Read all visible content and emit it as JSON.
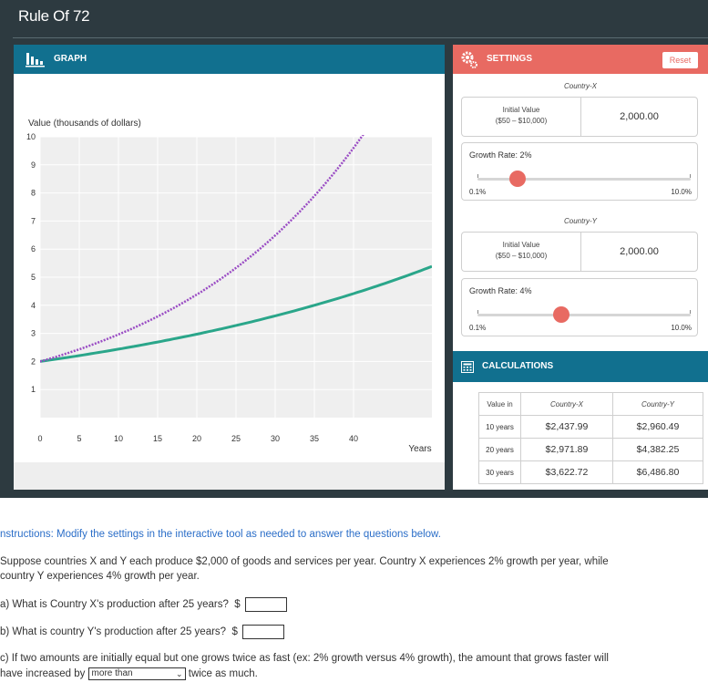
{
  "app": {
    "title": "Rule Of 72"
  },
  "graph_panel": {
    "header": "GRAPH"
  },
  "chart_data": {
    "type": "line",
    "ylabel": "Value (thousands of dollars)",
    "xlabel": "Years",
    "xlim": [
      0,
      50
    ],
    "ylim": [
      0,
      10
    ],
    "x_ticks": [
      0,
      5,
      10,
      15,
      20,
      25,
      30,
      35,
      40
    ],
    "y_ticks": [
      1,
      2,
      3,
      4,
      5,
      6,
      7,
      8,
      9,
      10
    ],
    "grid": true,
    "legend_position": "bottom",
    "series": [
      {
        "name": "Country-X",
        "color": "#2aa68a",
        "dash": "solid",
        "start": 2.0,
        "rate": 0.02,
        "x": [
          0,
          10,
          20,
          30,
          40,
          45
        ],
        "y": [
          2.0,
          2.44,
          2.97,
          3.62,
          4.42,
          4.88
        ]
      },
      {
        "name": "Country-Y",
        "color": "#9a4cc4",
        "dash": "dotted",
        "start": 2.0,
        "rate": 0.04,
        "x": [
          0,
          10,
          20,
          30,
          40,
          43
        ],
        "y": [
          2.0,
          2.96,
          4.38,
          6.49,
          9.6,
          10.8
        ]
      }
    ]
  },
  "settings": {
    "header": "SETTINGS",
    "reset_label": "Reset",
    "x": {
      "country": "Country-X",
      "initial_label": "Initial Value",
      "range_label": "($50 – $10,000)",
      "initial_value": "2,000.00",
      "growth_label": "Growth Rate: 2%",
      "rate_fraction": 0.19,
      "min_label": "0.1%",
      "max_label": "10.0%"
    },
    "y": {
      "country": "Country-Y",
      "initial_label": "Initial Value",
      "range_label": "($50 – $10,000)",
      "initial_value": "2,000.00",
      "growth_label": "Growth Rate: 4%",
      "rate_fraction": 0.394,
      "min_label": "0.1%",
      "max_label": "10.0%"
    }
  },
  "calculations": {
    "header": "CALCULATIONS",
    "columns": [
      "Value in",
      "Country-X",
      "Country-Y"
    ],
    "rows": [
      [
        "10 years",
        "$2,437.99",
        "$2,960.49"
      ],
      [
        "20 years",
        "$2,971.89",
        "$4,382.25"
      ],
      [
        "30 years",
        "$3,622.72",
        "$6,486.80"
      ]
    ]
  },
  "questions": {
    "instructions": "nstructions: Modify the settings in the interactive tool as needed to answer the questions below.",
    "intro_line1": "Suppose countries X and Y each produce $2,000 of goods and services per year.  Country X experiences 2% growth per year, while",
    "intro_line2": "country Y experiences 4% growth per year.",
    "qa": "a) What is Country X's production after 25 years?",
    "qa_currency": "$",
    "qb": "b) What is country Y's production after 25 years?",
    "qb_currency": "$",
    "qc_line1": "c) If two amounts are initially equal but one grows twice as fast (ex: 2% growth versus 4% growth), the amount that grows faster will",
    "qc_prefix": "have increased by",
    "qc_select": "more than",
    "qc_suffix": "twice as much."
  },
  "colors": {
    "teal_header": "#11708f",
    "coral_header": "#e86a62",
    "line_x": "#2aa68a",
    "line_y": "#9a4cc4"
  }
}
